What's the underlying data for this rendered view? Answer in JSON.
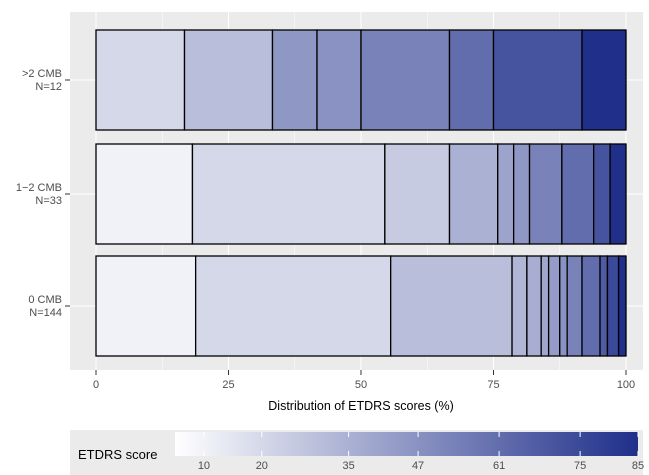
{
  "chart_data": {
    "type": "bar",
    "orientation": "horizontal",
    "stacked": true,
    "xlabel": "Distribution of ETDRS scores (%)",
    "ylabel": "",
    "xlim": [
      0,
      100
    ],
    "x_ticks": [
      0,
      25,
      50,
      75,
      100
    ],
    "grid": true,
    "legend_position": "bottom",
    "categories": [
      {
        "label": ">2 CMB",
        "n_label": "N=12"
      },
      {
        "label": "1−2 CMB",
        "n_label": "N=33"
      },
      {
        "label": "0 CMB",
        "n_label": "N=144"
      }
    ],
    "segments": [
      {
        "category": ">2 CMB",
        "boundaries": [
          0,
          16.7,
          33.3,
          41.7,
          50,
          66.7,
          75,
          91.7,
          100
        ],
        "scores": [
          20,
          30,
          45,
          47,
          53,
          61,
          71,
          85
        ]
      },
      {
        "category": "1−2 CMB",
        "boundaries": [
          0,
          18.2,
          54.5,
          66.7,
          75.8,
          78.8,
          81.8,
          87.9,
          93.9,
          97,
          100
        ],
        "scores": [
          10,
          20,
          25,
          35,
          40,
          45,
          53,
          61,
          71,
          85
        ]
      },
      {
        "category": "0 CMB",
        "boundaries": [
          0,
          18.8,
          55.6,
          78.5,
          81.3,
          84,
          85.4,
          87.5,
          88.9,
          91.7,
          95.1,
          96.5,
          98.6,
          100
        ],
        "scores": [
          10,
          20,
          30,
          33,
          36,
          39,
          43,
          47,
          53,
          61,
          68,
          75,
          85
        ]
      }
    ],
    "colorbar": {
      "title": "ETDRS score",
      "min": 5,
      "max": 85,
      "ticks": [
        10,
        20,
        35,
        47,
        61,
        75,
        85
      ],
      "low_color": "#ffffff",
      "high_color": "#1f2f8a"
    },
    "colors": {
      "panel_background": "#ebebeb",
      "grid": "#ffffff",
      "segment_border": "#000000"
    }
  }
}
